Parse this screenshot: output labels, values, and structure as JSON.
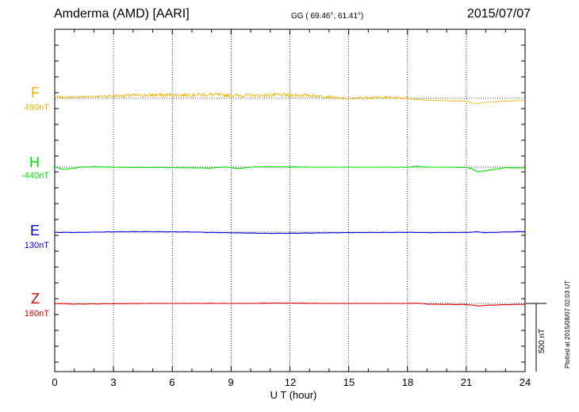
{
  "header": {
    "station": "Amderma (AMD)  [AARI]",
    "coords": "GG ( 69.46°,  61.41°)",
    "date": "2015/07/07"
  },
  "scale_bar": {
    "label": "500 nT"
  },
  "footer": {
    "plotted": "Plotted at 2015/08/07 02:03 UT"
  },
  "chart_data": {
    "type": "line",
    "xlabel": "U T (hour)",
    "xlim": [
      0,
      24
    ],
    "xticks": [
      "0",
      "3",
      "6",
      "9",
      "12",
      "15",
      "18",
      "21",
      "24"
    ],
    "grid": true,
    "panels": [
      {
        "name": "F",
        "baseline": "490nT",
        "color": "#f0b000"
      },
      {
        "name": "H",
        "baseline": "-440nT",
        "color": "#00e000"
      },
      {
        "name": "E",
        "baseline": "130nT",
        "color": "#0000e0"
      },
      {
        "name": "Z",
        "baseline": "160nT",
        "color": "#e00000"
      }
    ],
    "series": [
      {
        "name": "F",
        "noisy": true,
        "x": [
          0,
          0.5,
          1,
          2,
          3,
          4,
          5,
          6,
          7,
          8,
          9,
          10,
          11,
          12,
          13,
          14,
          14.5,
          15,
          16,
          17,
          18,
          18.5,
          19,
          20,
          21,
          21.5,
          22,
          23,
          24
        ],
        "y": [
          10,
          5,
          8,
          12,
          15,
          18,
          20,
          20,
          22,
          22,
          18,
          17,
          20,
          20,
          18,
          10,
          0,
          -4,
          5,
          5,
          0,
          -6,
          -13,
          -15,
          -18,
          -35,
          -25,
          -18,
          -15
        ],
        "noise": [
          12,
          12,
          12,
          12,
          18,
          22,
          25,
          25,
          25,
          25,
          22,
          22,
          25,
          25,
          22,
          18,
          12,
          12,
          18,
          18,
          14,
          8,
          4,
          3,
          2,
          2,
          2,
          2,
          2
        ]
      },
      {
        "name": "H",
        "noisy": false,
        "x": [
          0,
          0.25,
          0.6,
          1,
          1.3,
          2,
          3,
          4,
          5,
          7,
          8,
          8.7,
          9,
          9.5,
          10,
          10.5,
          11,
          12,
          13,
          15,
          17,
          18,
          18.5,
          19,
          20,
          21,
          21.3,
          21.6,
          22,
          22.5,
          23,
          24
        ],
        "y": [
          0,
          -8,
          -13,
          -6,
          0,
          3,
          0,
          -2,
          -2,
          -4,
          -6,
          2,
          -4,
          -8,
          0,
          2,
          3,
          2,
          0,
          0,
          0,
          -1,
          6,
          0,
          0,
          -3,
          -10,
          -30,
          -22,
          -12,
          -3,
          -5
        ]
      },
      {
        "name": "E",
        "noisy": false,
        "x": [
          0,
          1,
          2,
          3,
          4,
          5,
          6,
          7,
          8,
          9,
          10,
          11,
          12,
          13,
          14,
          15,
          16,
          17,
          18,
          19,
          20,
          21,
          21.5,
          22,
          23,
          24
        ],
        "y": [
          -1,
          -2,
          0,
          2,
          3,
          3,
          2,
          1,
          -2,
          -4,
          -6,
          -8,
          -7,
          -6,
          -4,
          -3,
          -2,
          -2,
          -1,
          -3,
          -2,
          -2,
          2,
          -3,
          1,
          4
        ]
      },
      {
        "name": "Z",
        "noisy": false,
        "x": [
          0,
          0.5,
          1,
          2,
          3,
          4,
          5,
          6,
          7,
          8,
          9,
          10,
          11,
          12,
          13,
          14,
          15,
          16,
          17,
          18,
          18.5,
          19,
          20,
          21,
          21.3,
          21.6,
          22,
          23,
          24
        ],
        "y": [
          0,
          -2,
          -4,
          -3,
          -2,
          -1,
          0,
          0,
          0,
          1,
          0,
          0,
          2,
          2,
          1,
          0,
          0,
          0,
          0,
          0,
          2,
          -4,
          -6,
          -7,
          -10,
          -16,
          -12,
          -8,
          -5
        ]
      }
    ]
  }
}
